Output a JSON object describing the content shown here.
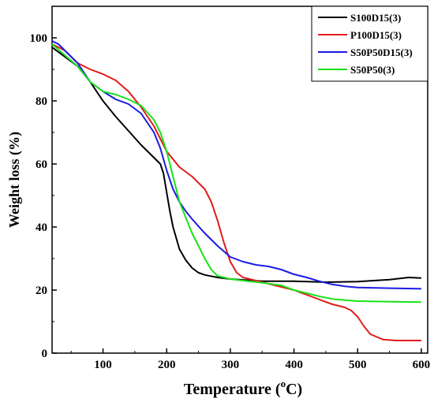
{
  "chart_data": {
    "type": "line",
    "title": "",
    "xlabel_main": "Temperature (",
    "xlabel_sup": "o",
    "xlabel_end": "C)",
    "ylabel": "Weight loss (%)",
    "xlim": [
      20,
      610
    ],
    "ylim": [
      0,
      110
    ],
    "xticks": [
      100,
      200,
      300,
      400,
      500,
      600
    ],
    "yticks": [
      0,
      20,
      40,
      60,
      80,
      100
    ],
    "grid": false,
    "legend_position": "top-right",
    "series": [
      {
        "name": "S100D15(3)",
        "color": "#000000",
        "x": [
          20,
          40,
          60,
          80,
          100,
          120,
          140,
          160,
          180,
          190,
          195,
          200,
          205,
          210,
          220,
          230,
          240,
          250,
          260,
          280,
          300,
          350,
          400,
          450,
          500,
          550,
          580,
          600
        ],
        "y": [
          97,
          94,
          91,
          86,
          80,
          75,
          70.5,
          66,
          62,
          60,
          57,
          51,
          45,
          40,
          33,
          29.5,
          27,
          25.5,
          24.8,
          24,
          23.5,
          22.8,
          22.8,
          22.5,
          22.7,
          23.3,
          24,
          23.8
        ]
      },
      {
        "name": "P100D15(3)",
        "color": "#e11b1b",
        "x": [
          20,
          40,
          60,
          80,
          100,
          120,
          140,
          160,
          180,
          200,
          220,
          240,
          260,
          270,
          280,
          290,
          300,
          310,
          320,
          340,
          360,
          380,
          400,
          420,
          440,
          460,
          480,
          490,
          500,
          510,
          520,
          540,
          560,
          580,
          600
        ],
        "y": [
          98,
          96,
          92,
          90,
          88.5,
          86.5,
          83,
          78,
          72,
          64,
          59,
          56,
          52,
          48,
          42,
          35,
          29,
          25.5,
          24,
          23,
          22,
          21,
          20,
          18.5,
          17,
          15.5,
          14.5,
          13.5,
          11.5,
          8.5,
          6,
          4.3,
          4,
          4,
          4
        ]
      },
      {
        "name": "S50P50D15(3)",
        "color": "#1b1be1",
        "x": [
          20,
          30,
          40,
          60,
          80,
          100,
          120,
          140,
          160,
          180,
          190,
          200,
          210,
          220,
          230,
          240,
          260,
          280,
          300,
          320,
          340,
          360,
          380,
          400,
          420,
          440,
          460,
          480,
          500,
          550,
          600
        ],
        "y": [
          99,
          98,
          96,
          92,
          86,
          83,
          80.5,
          79,
          76,
          70,
          65,
          58,
          52,
          48,
          45,
          42.5,
          38,
          34,
          30.5,
          29,
          28,
          27.5,
          26.5,
          25,
          24,
          22.8,
          21.8,
          21.2,
          20.8,
          20.6,
          20.4
        ]
      },
      {
        "name": "S50P50(3)",
        "color": "#1be11b",
        "x": [
          20,
          40,
          60,
          80,
          100,
          120,
          140,
          160,
          180,
          190,
          200,
          210,
          220,
          230,
          240,
          250,
          260,
          270,
          280,
          300,
          320,
          350,
          380,
          400,
          420,
          440,
          460,
          480,
          500,
          550,
          600
        ],
        "y": [
          98,
          94.5,
          91,
          86,
          83,
          82,
          80.5,
          78.5,
          74,
          70,
          64,
          56,
          48,
          43,
          38,
          34,
          30,
          26.5,
          24.5,
          23.5,
          23,
          22.3,
          21.5,
          20,
          19,
          18,
          17.2,
          16.8,
          16.5,
          16.3,
          16.2
        ]
      }
    ]
  }
}
